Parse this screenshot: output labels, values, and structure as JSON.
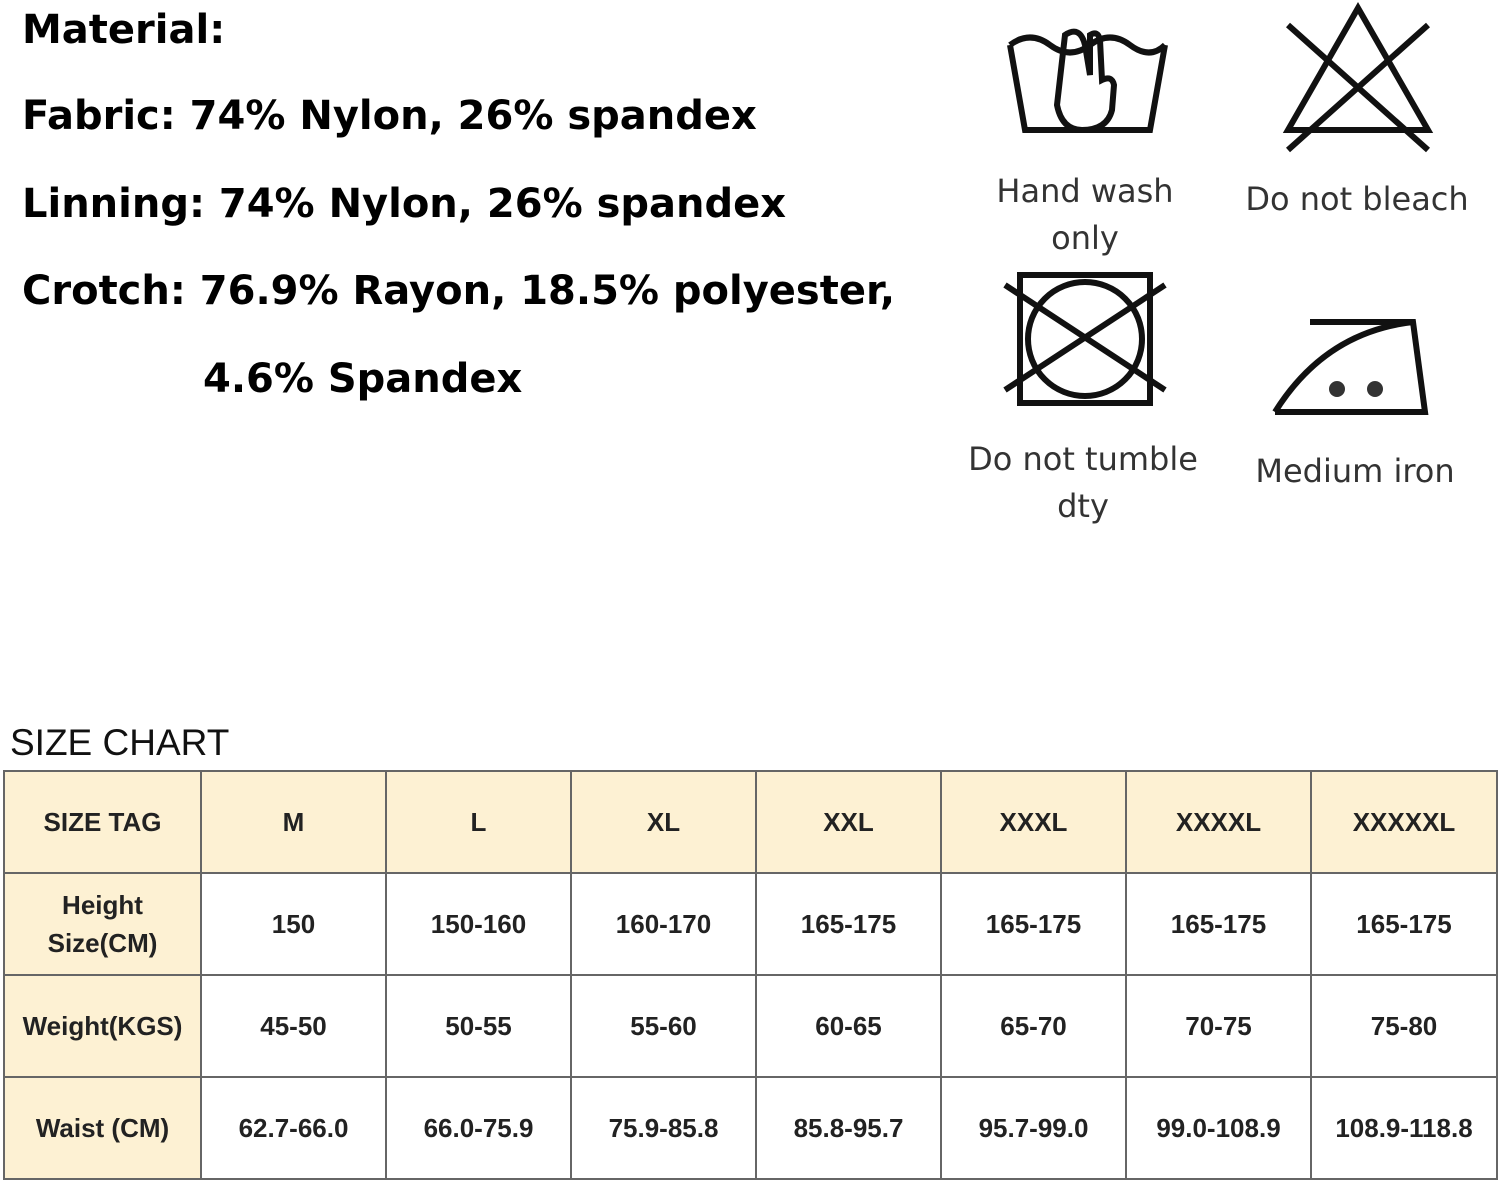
{
  "material": {
    "heading": "Material:",
    "lines": [
      "Fabric: 74% Nylon, 26% spandex",
      "Linning: 74% Nylon, 26% spandex",
      "Crotch: 76.9% Rayon, 18.5% polyester,",
      "4.6% Spandex"
    ]
  },
  "care": [
    "Hand wash only",
    "Do not bleach",
    "Do not tumble dty",
    "Medium iron"
  ],
  "size_chart": {
    "title": "SIZE CHART",
    "header": [
      "SIZE TAG",
      "M",
      "L",
      "XL",
      "XXL",
      "XXXL",
      "XXXXL",
      "XXXXXL"
    ],
    "rows": [
      [
        "Height Size(CM)",
        "150",
        "150-160",
        "160-170",
        "165-175",
        "165-175",
        "165-175",
        "165-175"
      ],
      [
        "Weight(KGS)",
        "45-50",
        "50-55",
        "55-60",
        "60-65",
        "65-70",
        "70-75",
        "75-80"
      ],
      [
        "Waist (CM)",
        "62.7-66.0",
        "66.0-75.9",
        "75.9-85.8",
        "85.8-95.7",
        "95.7-99.0",
        "99.0-108.9",
        "108.9-118.8"
      ]
    ]
  }
}
